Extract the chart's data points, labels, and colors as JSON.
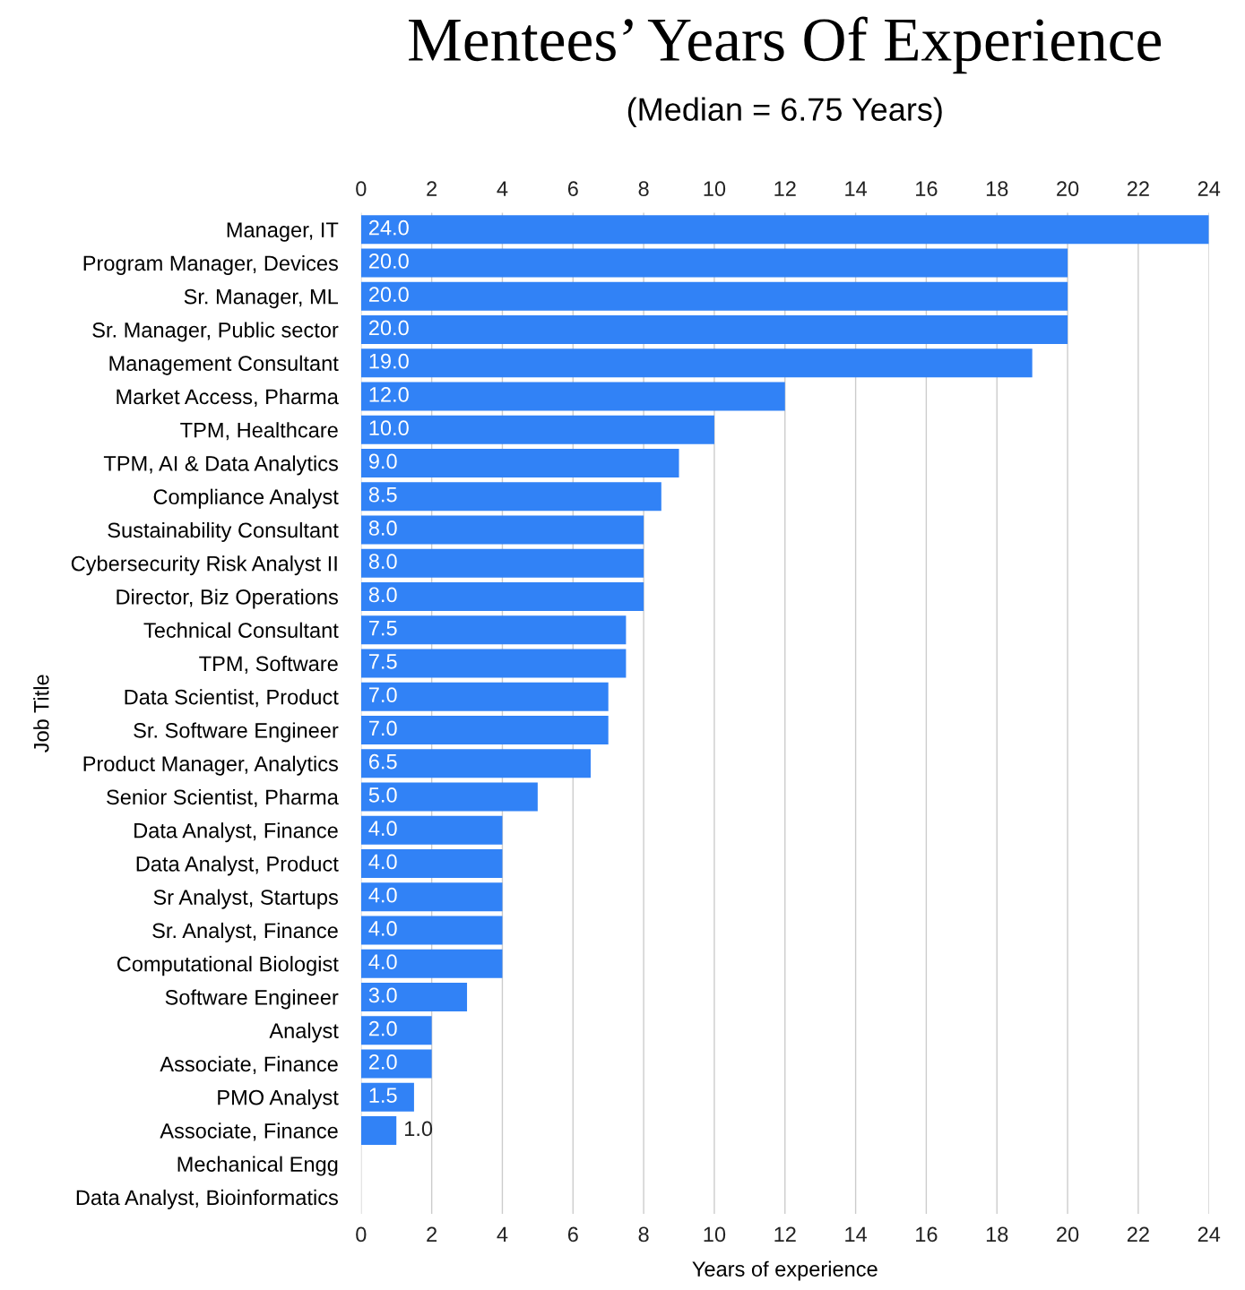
{
  "chart_data": {
    "type": "bar",
    "orientation": "horizontal",
    "title": "Mentees’ Years Of Experience",
    "subtitle": "(Median = 6.75 Years)",
    "xlabel": "Years of experience",
    "ylabel": "Job Title",
    "categories": [
      "Manager, IT",
      "Program Manager, Devices",
      "Sr. Manager, ML",
      "Sr. Manager, Public sector",
      "Management Consultant",
      "Market Access, Pharma",
      "TPM, Healthcare",
      "TPM, AI & Data Analytics",
      "Compliance Analyst",
      "Sustainability Consultant",
      "Cybersecurity Risk Analyst II",
      "Director, Biz Operations",
      "Technical Consultant",
      "TPM, Software",
      "Data Scientist, Product",
      "Sr. Software Engineer",
      "Product Manager, Analytics",
      "Senior Scientist, Pharma",
      "Data Analyst, Finance",
      "Data Analyst, Product",
      "Sr Analyst, Startups",
      "Sr. Analyst, Finance",
      "Computational Biologist",
      "Software Engineer",
      "Analyst",
      "Associate, Finance",
      "PMO Analyst",
      "Associate, Finance",
      "Mechanical Engg",
      "Data Analyst, Bioinformatics"
    ],
    "values": [
      24.0,
      20.0,
      20.0,
      20.0,
      19.0,
      12.0,
      10.0,
      9.0,
      8.5,
      8.0,
      8.0,
      8.0,
      7.5,
      7.5,
      7.0,
      7.0,
      6.5,
      5.0,
      4.0,
      4.0,
      4.0,
      4.0,
      4.0,
      3.0,
      2.0,
      2.0,
      1.5,
      1.0,
      0,
      0
    ],
    "value_labels": [
      "24.0",
      "20.0",
      "20.0",
      "20.0",
      "19.0",
      "12.0",
      "10.0",
      "9.0",
      "8.5",
      "8.0",
      "8.0",
      "8.0",
      "7.5",
      "7.5",
      "7.0",
      "7.0",
      "6.5",
      "5.0",
      "4.0",
      "4.0",
      "4.0",
      "4.0",
      "4.0",
      "3.0",
      "2.0",
      "2.0",
      "1.5",
      "1.0",
      null,
      null
    ],
    "color": "#3182f6",
    "xlim": [
      0,
      24
    ],
    "xticks": [
      0,
      2,
      4,
      6,
      8,
      10,
      12,
      14,
      16,
      18,
      20,
      22,
      24
    ],
    "x2lim": [
      0,
      24
    ],
    "x2ticks": [
      0,
      2,
      4,
      6,
      8,
      10,
      12,
      14,
      16,
      18,
      20,
      22,
      24
    ],
    "grid": "x",
    "legend": false
  }
}
